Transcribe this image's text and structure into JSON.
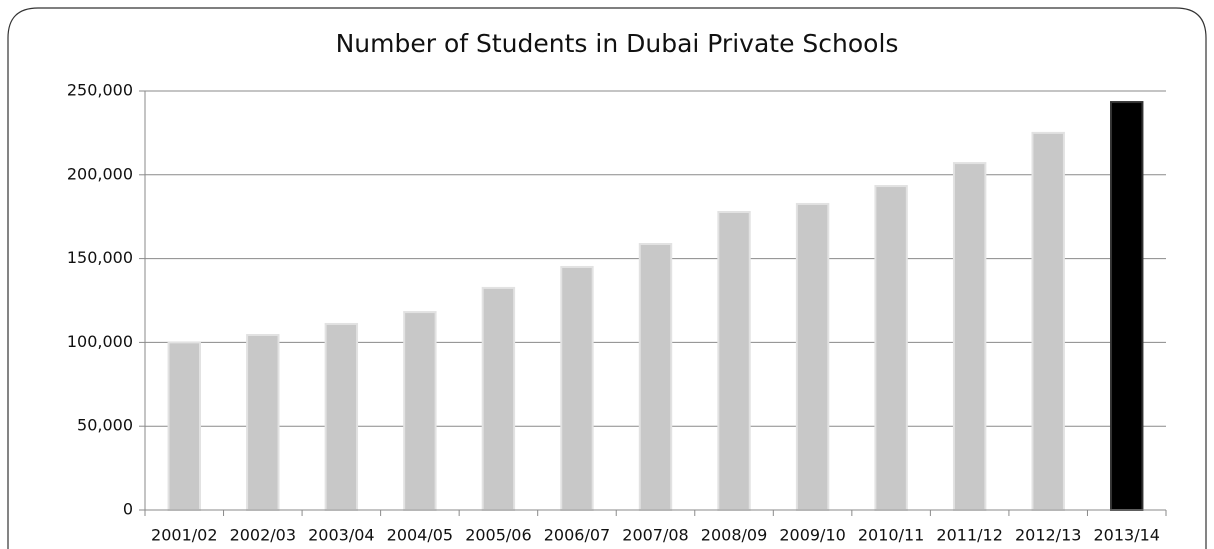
{
  "chart_data": {
    "type": "bar",
    "title": "Number of Students in Dubai Private Schools",
    "categories": [
      "2001/02",
      "2002/03",
      "2003/04",
      "2004/05",
      "2005/06",
      "2006/07",
      "2007/08",
      "2008/09",
      "2009/10",
      "2010/11",
      "2011/12",
      "2012/13",
      "2013/14"
    ],
    "values": [
      100000,
      104400,
      111000,
      118100,
      132500,
      145000,
      158700,
      177800,
      182600,
      193300,
      207000,
      225000,
      243400
    ],
    "colors": [
      "#c8c8c8",
      "#c8c8c8",
      "#c8c8c8",
      "#c8c8c8",
      "#c8c8c8",
      "#c8c8c8",
      "#c8c8c8",
      "#c8c8c8",
      "#c8c8c8",
      "#c8c8c8",
      "#c8c8c8",
      "#c8c8c8",
      "#000000"
    ],
    "ylim": [
      0,
      250000
    ],
    "yticks": [
      0,
      {
        "value": 50000,
        "label": "50,000"
      },
      {
        "value": 100000,
        "label": "100,000"
      },
      {
        "value": 150000,
        "label": "150,000"
      },
      {
        "value": 200000,
        "label": "200,000"
      },
      {
        "value": 250000,
        "label": "250,000"
      }
    ],
    "grid": true
  }
}
